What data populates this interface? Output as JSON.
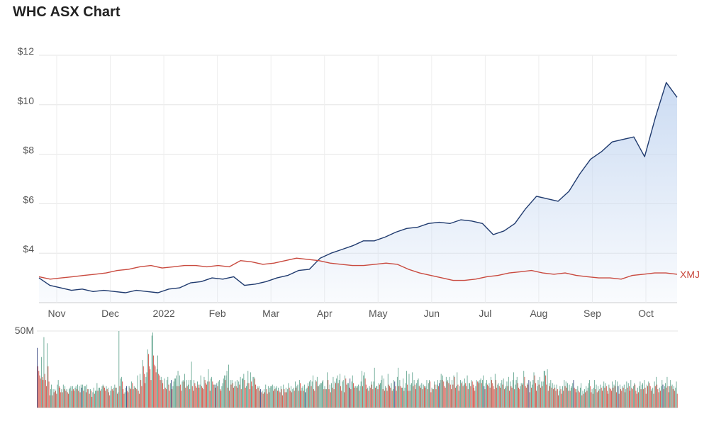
{
  "page": {
    "title": "WHC ASX Chart"
  },
  "chart_data": [
    {
      "type": "line",
      "ylim": [
        2,
        12
      ],
      "y_ticks": [
        4,
        6,
        8,
        10,
        12
      ],
      "y_tick_labels": [
        "$4",
        "$6",
        "$8",
        "$10",
        "$12"
      ],
      "x_tick_labels": [
        "Nov",
        "Dec",
        "2022",
        "Feb",
        "Mar",
        "Apr",
        "May",
        "Jun",
        "Jul",
        "Aug",
        "Sep",
        "Oct"
      ],
      "grid": true,
      "colors": {
        "WHC": "#1f3a6e",
        "XMJ": "#c94a3f",
        "area": "#c9daf2"
      },
      "series": [
        {
          "key": "WHC",
          "name": "",
          "values": [
            3.0,
            2.7,
            2.6,
            2.5,
            2.55,
            2.45,
            2.5,
            2.45,
            2.4,
            2.5,
            2.45,
            2.4,
            2.55,
            2.6,
            2.8,
            2.85,
            3.0,
            2.95,
            3.05,
            2.7,
            2.75,
            2.85,
            3.0,
            3.1,
            3.3,
            3.35,
            3.8,
            4.0,
            4.15,
            4.3,
            4.5,
            4.5,
            4.65,
            4.85,
            5.0,
            5.05,
            5.2,
            5.25,
            5.2,
            5.35,
            5.3,
            5.2,
            4.75,
            4.9,
            5.2,
            5.8,
            6.3,
            6.2,
            6.1,
            6.5,
            7.2,
            7.8,
            8.1,
            8.5,
            8.6,
            8.7,
            7.9,
            9.5,
            10.9,
            10.3
          ]
        },
        {
          "key": "XMJ",
          "name": "XMJ",
          "values": [
            3.05,
            2.95,
            3.0,
            3.05,
            3.1,
            3.15,
            3.2,
            3.3,
            3.35,
            3.45,
            3.5,
            3.4,
            3.45,
            3.5,
            3.5,
            3.45,
            3.5,
            3.45,
            3.7,
            3.65,
            3.55,
            3.6,
            3.7,
            3.8,
            3.75,
            3.7,
            3.6,
            3.55,
            3.5,
            3.5,
            3.55,
            3.6,
            3.55,
            3.35,
            3.2,
            3.1,
            3.0,
            2.9,
            2.9,
            2.95,
            3.05,
            3.1,
            3.2,
            3.25,
            3.3,
            3.2,
            3.15,
            3.2,
            3.1,
            3.05,
            3.0,
            3.0,
            2.95,
            3.1,
            3.15,
            3.2,
            3.2,
            3.15
          ]
        }
      ]
    },
    {
      "type": "bar",
      "y_tick_labels": [
        "50M"
      ],
      "ylim": [
        0,
        50
      ],
      "grid": true,
      "colors": {
        "up": "#5ba08a",
        "down": "#d04a3e",
        "neutral": "#2a3a78"
      },
      "values": [
        39,
        27,
        24,
        21,
        19,
        33,
        20,
        18,
        46,
        22,
        18,
        14,
        42,
        27,
        17,
        8,
        12,
        15,
        8,
        12,
        10,
        12,
        11,
        9,
        15,
        18,
        14,
        13,
        10,
        12,
        10,
        15,
        12,
        14,
        11,
        12,
        10,
        9,
        12,
        13,
        14,
        11,
        14,
        12,
        11,
        13,
        14,
        12,
        15,
        11,
        14,
        10,
        15,
        13,
        15,
        11,
        14,
        14,
        10,
        15,
        12,
        12,
        9,
        12,
        11,
        7,
        10,
        13,
        9,
        11,
        11,
        16,
        11,
        13,
        13,
        11,
        12,
        14,
        15,
        14,
        13,
        11,
        14,
        12,
        13,
        10,
        8,
        11,
        14,
        12,
        11,
        13,
        15,
        13,
        13,
        9,
        10,
        50,
        14,
        19,
        20,
        17,
        12,
        9,
        10,
        13,
        14,
        11,
        10,
        14,
        13,
        12,
        17,
        16,
        12,
        14,
        13,
        13,
        12,
        21,
        11,
        9,
        22,
        18,
        14,
        31,
        27,
        22,
        16,
        20,
        23,
        38,
        35,
        27,
        25,
        18,
        47,
        49,
        34,
        28,
        27,
        23,
        25,
        34,
        22,
        21,
        18,
        20,
        18,
        16,
        12,
        19,
        13,
        12,
        18,
        20,
        15,
        11,
        16,
        18,
        12,
        14,
        17,
        19,
        19,
        21,
        14,
        24,
        14,
        21,
        15,
        11,
        17,
        18,
        17,
        22,
        13,
        18,
        14,
        15,
        18,
        12,
        18,
        30,
        14,
        11,
        18,
        16,
        14,
        13,
        17,
        15,
        13,
        15,
        21,
        14,
        13,
        12,
        20,
        18,
        16,
        15,
        17,
        25,
        17,
        11,
        19,
        20,
        17,
        15,
        15,
        13,
        15,
        16,
        14,
        17,
        18,
        12,
        11,
        14,
        16,
        19,
        21,
        18,
        21,
        24,
        13,
        28,
        11,
        18,
        15,
        18,
        16,
        13,
        14,
        17,
        14,
        18,
        13,
        17,
        15,
        20,
        12,
        19,
        19,
        22,
        18,
        13,
        14,
        16,
        24,
        16,
        12,
        23,
        17,
        14,
        20,
        20,
        19,
        15,
        12,
        14,
        13,
        14,
        11,
        12,
        10,
        11,
        9,
        12,
        10,
        15,
        12,
        9,
        14,
        10,
        13,
        14,
        14,
        15,
        11,
        14,
        12,
        13,
        14,
        11,
        13,
        11,
        10,
        14,
        12,
        8,
        15,
        12,
        10,
        13,
        10,
        12,
        16,
        13,
        11,
        14,
        10,
        12,
        13,
        11,
        17,
        13,
        14,
        15,
        11,
        18,
        16,
        11,
        13,
        14,
        11,
        15,
        10,
        12,
        13,
        16,
        14,
        17,
        18,
        14,
        17,
        21,
        12,
        11,
        18,
        17,
        20,
        14,
        14,
        15,
        16,
        16,
        17,
        18,
        12,
        14,
        12,
        12,
        23,
        18,
        12,
        15,
        10,
        16,
        13,
        20,
        12,
        17,
        16,
        19,
        21,
        16,
        18,
        22,
        14,
        11,
        17,
        18,
        10,
        21,
        19,
        15,
        16,
        16,
        13,
        19,
        12,
        17,
        21,
        16,
        13,
        14,
        14,
        13,
        14,
        15,
        11,
        14,
        17,
        24,
        14,
        21,
        23,
        19,
        15,
        12,
        13,
        11,
        14,
        13,
        17,
        15,
        12,
        17,
        26,
        13,
        14,
        14,
        12,
        16,
        15,
        16,
        18,
        21,
        12,
        19,
        11,
        14,
        13,
        11,
        22,
        15,
        14,
        13,
        16,
        11,
        12,
        18,
        17,
        14,
        11,
        20,
        26,
        14,
        18,
        14,
        13,
        13,
        19,
        11,
        13,
        16,
        24,
        15,
        11,
        22,
        11,
        15,
        16,
        23,
        14,
        18,
        15,
        12,
        16,
        18,
        19,
        14,
        15,
        13,
        16,
        12,
        15,
        14,
        13,
        14,
        18,
        12,
        16,
        18,
        17,
        10,
        13,
        12,
        12,
        17,
        15,
        12,
        15,
        18,
        14,
        16,
        18,
        22,
        18,
        21,
        17,
        14,
        13,
        20,
        17,
        18,
        16,
        20,
        15,
        12,
        18,
        15,
        21,
        20,
        13,
        14,
        23,
        15,
        11,
        14,
        18,
        16,
        17,
        14,
        15,
        19,
        16,
        14,
        21,
        12,
        16,
        16,
        14,
        18,
        17,
        15,
        13,
        11,
        14,
        18,
        17,
        17,
        16,
        18,
        19,
        16,
        18,
        21,
        14,
        12,
        16,
        18,
        15,
        14,
        16,
        13,
        20,
        18,
        16,
        14,
        12,
        22,
        18,
        13,
        15,
        16,
        14,
        13,
        16,
        18,
        15,
        19,
        12,
        13,
        14,
        17,
        14,
        20,
        11,
        17,
        14,
        13,
        18,
        23,
        12,
        15,
        18,
        20,
        16,
        13,
        12,
        14,
        16,
        15,
        16,
        24,
        20,
        14,
        13,
        16,
        15,
        18,
        10,
        17,
        13,
        15,
        18,
        23,
        21,
        16,
        11,
        14,
        18,
        15,
        20,
        13,
        17,
        14,
        17,
        24,
        24,
        21,
        15,
        25,
        11,
        16,
        14,
        18,
        13,
        16,
        12,
        15,
        13,
        11,
        15,
        12,
        8,
        11,
        14,
        12,
        9,
        14,
        11,
        18,
        14,
        17,
        13,
        16,
        11,
        15,
        11,
        13,
        14,
        16,
        18,
        13,
        12,
        10,
        12,
        14,
        11,
        10,
        13,
        16,
        8,
        11,
        9,
        12,
        10,
        14,
        11,
        13,
        16,
        18,
        14,
        10,
        12,
        9,
        13,
        18,
        12,
        15,
        10,
        14,
        11,
        12,
        15,
        13,
        11,
        14,
        17,
        13,
        16,
        14,
        11,
        9,
        15,
        13,
        12,
        11,
        17,
        13,
        15,
        14,
        18,
        10,
        17,
        14,
        9,
        15,
        12,
        11,
        14,
        13,
        15,
        10,
        12,
        17,
        13,
        16,
        14,
        11,
        18,
        13,
        12,
        14,
        16,
        15,
        11,
        9,
        13,
        10,
        14,
        17,
        12,
        15,
        16,
        12,
        18,
        13,
        9,
        15,
        14,
        17,
        16,
        14,
        11,
        12,
        13,
        9,
        17,
        14,
        20,
        15,
        12,
        10,
        13,
        11,
        14,
        18,
        15,
        12,
        14,
        16,
        13,
        20,
        14,
        10,
        14,
        18,
        14,
        15,
        12,
        14,
        11,
        13,
        17,
        9
      ]
    }
  ]
}
